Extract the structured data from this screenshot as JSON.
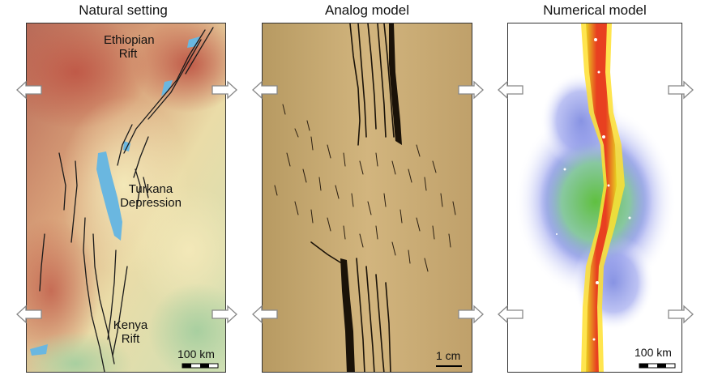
{
  "panels": {
    "natural": {
      "title": "Natural setting",
      "labels": {
        "ethiopian_rift": "Ethiopian Rift",
        "turkana": "Turkana Depression",
        "kenya_rift": "Kenya Rift"
      },
      "scale": "100 km"
    },
    "analog": {
      "title": "Analog model",
      "scale": "1 cm"
    },
    "numerical": {
      "title": "Numerical model",
      "scale": "100 km"
    }
  },
  "colors": {
    "lake": "#6ab7e0",
    "terrain_low": "#e8dca0",
    "terrain_mid": "#d69870",
    "terrain_high": "#c06050",
    "sand": "#c8aa70",
    "numerical_high": "#d02020",
    "numerical_mid": "#50b040",
    "numerical_low": "#7080e0"
  },
  "icons": [
    "extension-arrow-left-icon",
    "extension-arrow-right-icon"
  ]
}
